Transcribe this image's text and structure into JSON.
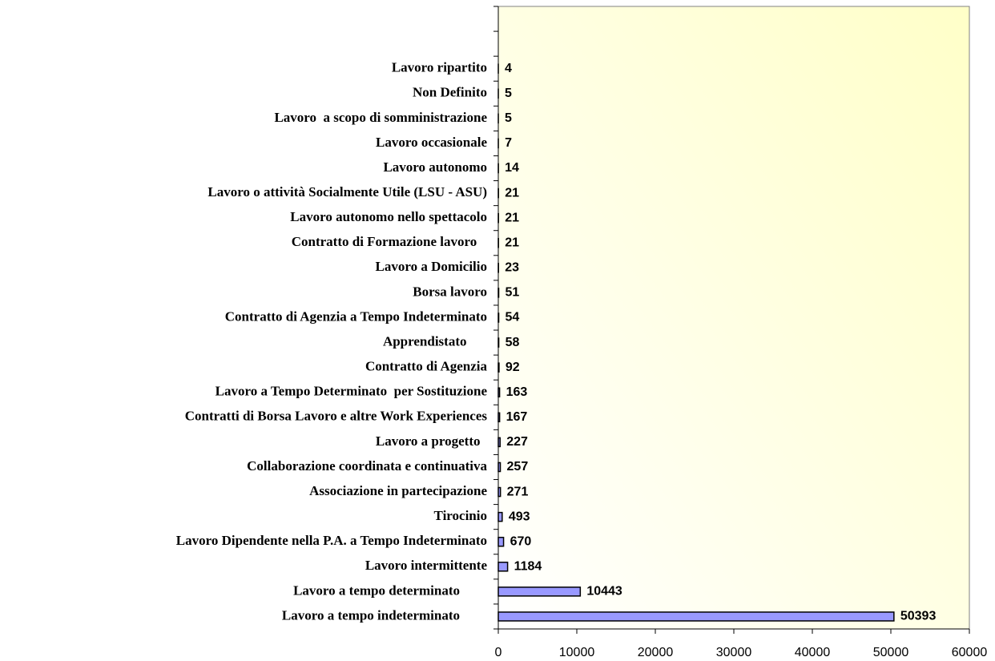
{
  "chart_data": {
    "type": "bar",
    "orientation": "horizontal",
    "categories": [
      null,
      null,
      "Lavoro ripartito",
      "Non Definito",
      "Lavoro  a scopo di somministrazione",
      "Lavoro occasionale",
      "Lavoro autonomo",
      "Lavoro o attività Socialmente Utile (LSU - ASU)",
      "Lavoro autonomo nello spettacolo",
      "Contratto di Formazione lavoro   ",
      "Lavoro a Domicilio",
      "Borsa lavoro",
      "Contratto di Agenzia a Tempo Indeterminato",
      "Apprendistato      ",
      "Contratto di Agenzia",
      "Lavoro a Tempo Determinato  per Sostituzione",
      "Contratti di Borsa Lavoro e altre Work Experiences",
      "Lavoro a progetto  ",
      "Collaborazione coordinata e continuativa",
      "Associazione in partecipazione",
      "Tirocinio",
      "Lavoro Dipendente nella P.A. a Tempo Indeterminato",
      "Lavoro intermittente",
      "Lavoro a tempo determinato        ",
      "Lavoro a tempo indeterminato        "
    ],
    "values": [
      null,
      null,
      4,
      5,
      5,
      7,
      14,
      21,
      21,
      21,
      23,
      51,
      54,
      58,
      92,
      163,
      167,
      227,
      257,
      271,
      493,
      670,
      1184,
      10443,
      50393
    ],
    "color": "#9999ff",
    "xlim": [
      0,
      60000
    ],
    "xticks": [
      0,
      10000,
      20000,
      30000,
      40000,
      50000,
      60000
    ]
  }
}
